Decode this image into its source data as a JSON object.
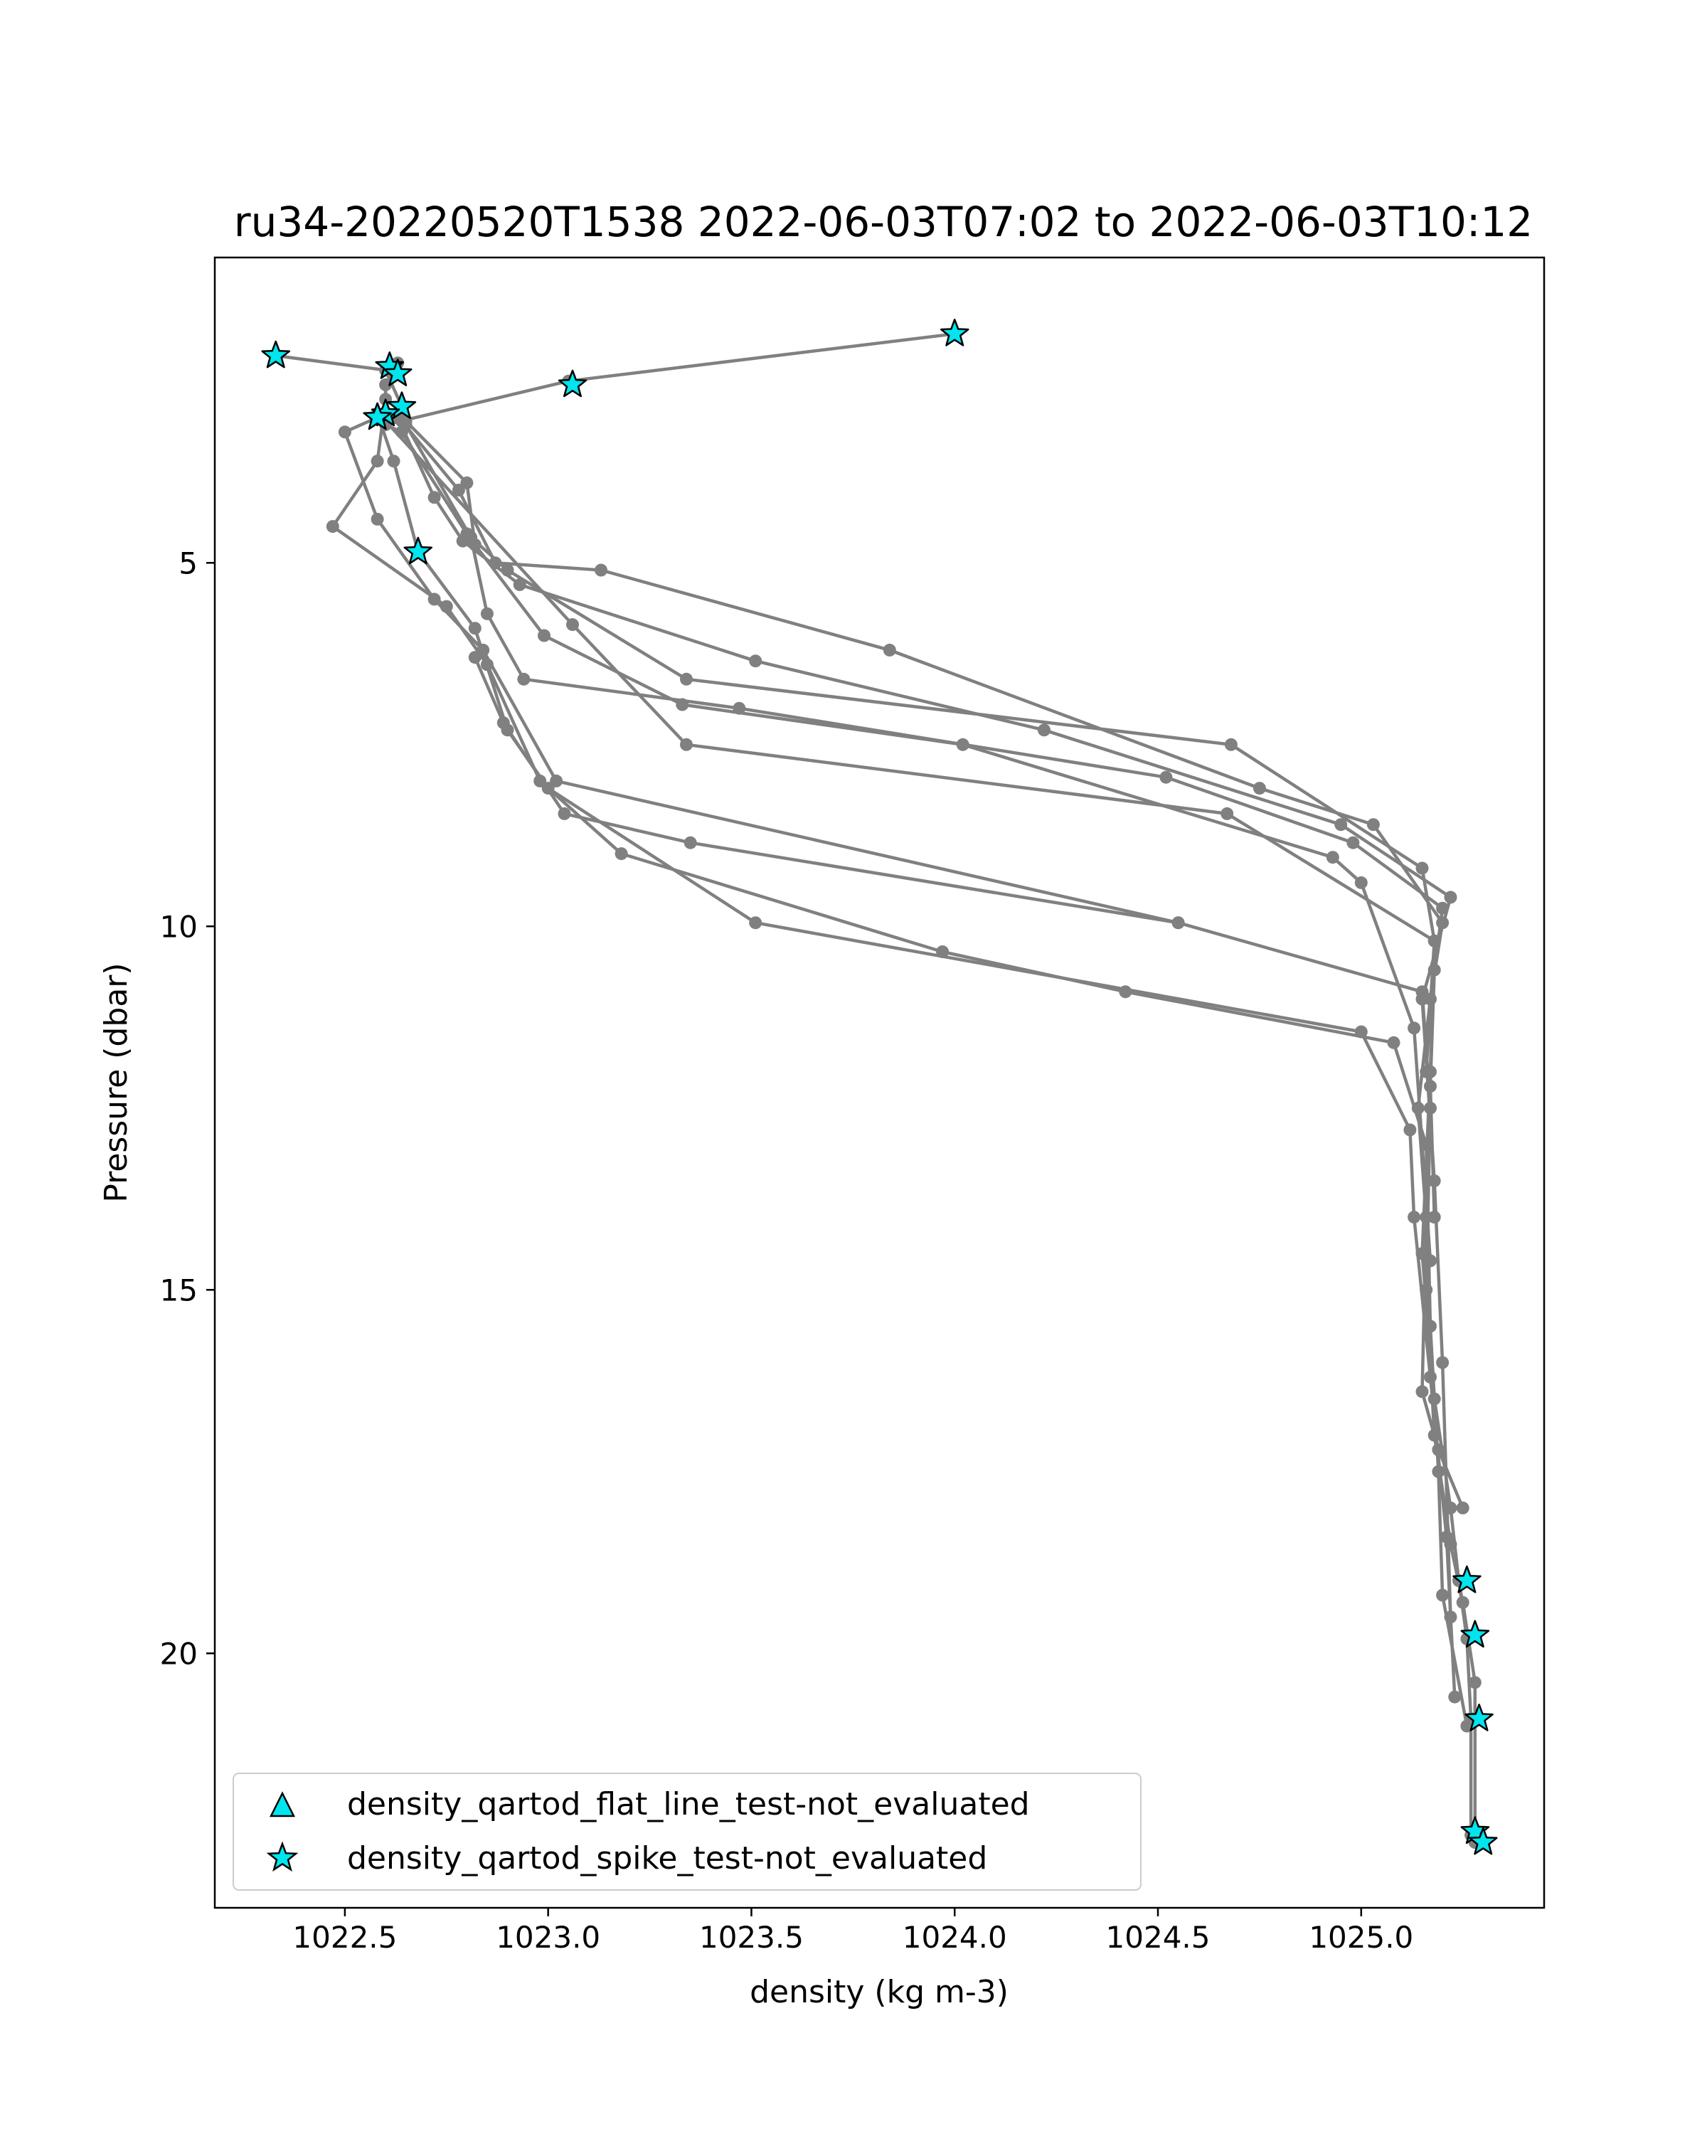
{
  "chart_data": {
    "type": "line",
    "title": "ru34-20220520T1538 2022-06-03T07:02 to 2022-06-03T10:12",
    "xlabel": "density (kg m-3)",
    "ylabel": "Pressure (dbar)",
    "xlim": [
      1022.18,
      1025.45
    ],
    "ylim": [
      23.5,
      0.8
    ],
    "y_inverted": true,
    "grid": false,
    "x_ticks": [
      1022.5,
      1023.0,
      1023.5,
      1024.0,
      1024.5,
      1025.0
    ],
    "x_tick_labels": [
      "1022.5",
      "1023.0",
      "1023.5",
      "1024.0",
      "1024.5",
      "1025.0"
    ],
    "y_ticks": [
      5,
      10,
      15,
      20
    ],
    "y_tick_labels": [
      "5",
      "10",
      "15",
      "20"
    ],
    "line_color": "#808080",
    "marker_color": "#00e5ee",
    "legend": {
      "placement": "lower-left",
      "entries": [
        {
          "label": "density_qartod_flat_line_test-not_evaluated",
          "marker": "triangle"
        },
        {
          "label": "density_qartod_spike_test-not_evaluated",
          "marker": "star"
        }
      ]
    },
    "series": [
      {
        "points": [
          [
            1024.0,
            1.85
          ],
          [
            1023.05,
            2.5
          ],
          [
            1022.6,
            3.1
          ],
          [
            1022.64,
            3.2
          ],
          [
            1022.8,
            4.6
          ],
          [
            1022.9,
            5.1
          ],
          [
            1023.34,
            6.6
          ],
          [
            1024.68,
            7.5
          ],
          [
            1025.15,
            9.2
          ],
          [
            1025.18,
            10.2
          ],
          [
            1025.17,
            12.0
          ],
          [
            1025.15,
            14.5
          ],
          [
            1025.18,
            16.5
          ],
          [
            1025.22,
            18.0
          ],
          [
            1025.24,
            19.0
          ],
          [
            1025.26,
            19.8
          ],
          [
            1025.27,
            20.9
          ],
          [
            1025.27,
            22.5
          ]
        ]
      },
      {
        "points": [
          [
            1022.33,
            2.15
          ],
          [
            1022.6,
            2.35
          ],
          [
            1022.64,
            2.85
          ],
          [
            1022.5,
            3.2
          ],
          [
            1022.58,
            4.4
          ],
          [
            1022.72,
            5.5
          ],
          [
            1022.84,
            6.2
          ],
          [
            1023.02,
            8.0
          ],
          [
            1024.55,
            9.95
          ],
          [
            1025.15,
            10.9
          ],
          [
            1025.17,
            12.5
          ],
          [
            1025.16,
            15.0
          ],
          [
            1025.18,
            17.0
          ],
          [
            1025.22,
            18.5
          ],
          [
            1025.25,
            19.3
          ],
          [
            1025.28,
            20.4
          ],
          [
            1025.28,
            22.6
          ]
        ]
      },
      {
        "points": [
          [
            1022.63,
            2.25
          ],
          [
            1022.6,
            2.55
          ],
          [
            1022.6,
            2.75
          ],
          [
            1022.58,
            3.6
          ],
          [
            1022.47,
            4.5
          ],
          [
            1022.75,
            5.6
          ],
          [
            1022.85,
            6.4
          ],
          [
            1022.98,
            8.0
          ],
          [
            1023.18,
            9.0
          ],
          [
            1023.97,
            10.35
          ],
          [
            1024.42,
            10.9
          ],
          [
            1025.08,
            11.6
          ],
          [
            1025.16,
            13.0
          ],
          [
            1025.17,
            15.5
          ],
          [
            1025.19,
            17.5
          ],
          [
            1025.2,
            19.2
          ],
          [
            1025.26,
            21.0
          ]
        ]
      },
      {
        "points": [
          [
            1022.58,
            2.95
          ],
          [
            1022.62,
            3.6
          ],
          [
            1022.68,
            4.85
          ],
          [
            1022.82,
            5.9
          ],
          [
            1022.9,
            7.3
          ],
          [
            1023.0,
            8.1
          ],
          [
            1023.51,
            9.95
          ],
          [
            1025.0,
            11.45
          ],
          [
            1025.12,
            12.8
          ],
          [
            1025.13,
            14.0
          ],
          [
            1025.17,
            16.2
          ],
          [
            1025.21,
            18.4
          ],
          [
            1025.23,
            20.6
          ]
        ]
      },
      {
        "points": [
          [
            1022.63,
            3.0
          ],
          [
            1022.72,
            4.1
          ],
          [
            1022.79,
            4.7
          ],
          [
            1022.93,
            5.3
          ],
          [
            1023.51,
            6.35
          ],
          [
            1024.22,
            7.3
          ],
          [
            1024.95,
            8.6
          ],
          [
            1025.22,
            9.6
          ],
          [
            1025.15,
            11.0
          ],
          [
            1025.18,
            13.5
          ],
          [
            1025.2,
            16.0
          ],
          [
            1025.22,
            19.5
          ]
        ]
      },
      {
        "points": [
          [
            1022.64,
            3.05
          ],
          [
            1022.78,
            4.0
          ],
          [
            1022.87,
            5.0
          ],
          [
            1023.13,
            5.1
          ],
          [
            1023.84,
            6.2
          ],
          [
            1024.75,
            8.1
          ],
          [
            1025.03,
            8.6
          ],
          [
            1025.2,
            9.95
          ],
          [
            1025.17,
            11.0
          ],
          [
            1025.14,
            12.5
          ],
          [
            1025.16,
            14.0
          ],
          [
            1025.15,
            16.4
          ],
          [
            1025.19,
            17.2
          ],
          [
            1025.25,
            18.0
          ]
        ]
      },
      {
        "points": [
          [
            1022.65,
            3.05
          ],
          [
            1022.8,
            3.9
          ],
          [
            1022.82,
            4.75
          ],
          [
            1022.99,
            6.0
          ],
          [
            1023.33,
            6.95
          ],
          [
            1024.02,
            7.5
          ],
          [
            1024.93,
            9.05
          ],
          [
            1025.0,
            9.4
          ],
          [
            1025.13,
            11.4
          ],
          [
            1025.17,
            14.6
          ]
        ]
      },
      {
        "points": [
          [
            1022.65,
            3.1
          ],
          [
            1022.81,
            4.65
          ],
          [
            1022.85,
            5.7
          ],
          [
            1022.94,
            6.6
          ],
          [
            1023.47,
            7.0
          ],
          [
            1024.52,
            7.95
          ],
          [
            1024.98,
            8.85
          ],
          [
            1025.2,
            9.75
          ],
          [
            1025.18,
            10.6
          ],
          [
            1025.17,
            12.2
          ],
          [
            1025.18,
            14.0
          ]
        ]
      },
      {
        "points": [
          [
            1022.6,
            3.05
          ],
          [
            1023.06,
            5.85
          ],
          [
            1023.34,
            7.5
          ],
          [
            1024.67,
            8.45
          ],
          [
            1025.18,
            10.2
          ],
          [
            1025.16,
            12.0
          ]
        ]
      },
      {
        "points": [
          [
            1022.82,
            6.3
          ],
          [
            1022.89,
            7.2
          ],
          [
            1023.04,
            8.45
          ],
          [
            1023.35,
            8.85
          ],
          [
            1024.55,
            9.95
          ]
        ]
      }
    ],
    "qc_flags": [
      {
        "test": "density_qartod_spike_test-not_evaluated",
        "marker": "star",
        "points": [
          [
            1024.0,
            1.85
          ],
          [
            1022.33,
            2.15
          ],
          [
            1022.61,
            2.3
          ],
          [
            1022.63,
            2.4
          ],
          [
            1023.06,
            2.55
          ],
          [
            1022.64,
            2.85
          ],
          [
            1022.6,
            2.95
          ],
          [
            1022.58,
            3.0
          ],
          [
            1022.68,
            4.85
          ],
          [
            1025.26,
            19.0
          ],
          [
            1025.28,
            19.75
          ],
          [
            1025.29,
            20.9
          ],
          [
            1025.28,
            22.45
          ],
          [
            1025.3,
            22.6
          ]
        ]
      }
    ]
  }
}
